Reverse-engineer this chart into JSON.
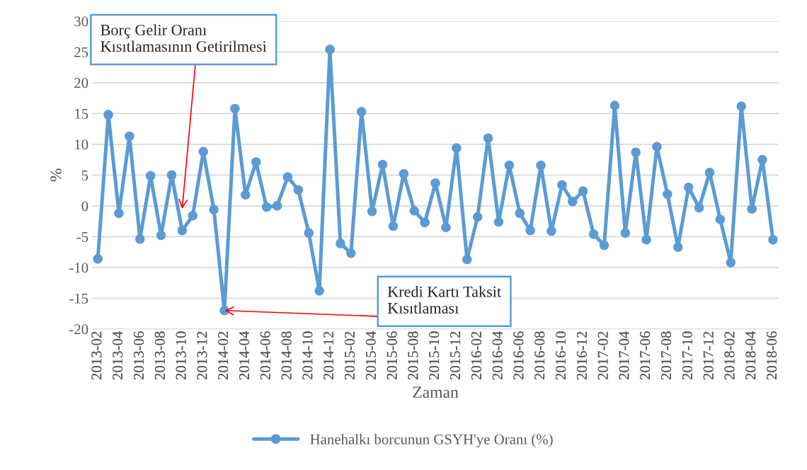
{
  "chart_data": {
    "type": "line",
    "xlabel": "Zaman",
    "ylabel": "%",
    "categories": [
      "2013-02",
      null,
      "2013-04",
      null,
      "2013-06",
      null,
      "2013-08",
      null,
      "2013-10",
      null,
      "2013-12",
      null,
      "2014-02",
      null,
      "2014-04",
      null,
      "2014-06",
      null,
      "2014-08",
      null,
      "2014-10",
      null,
      "2014-12",
      null,
      "2015-02",
      null,
      "2015-04",
      null,
      "2015-06",
      null,
      "2015-08",
      null,
      "2015-10",
      null,
      "2015-12",
      null,
      "2016-02",
      null,
      "2016-04",
      null,
      "2016-06",
      null,
      "2016-08",
      null,
      "2016-10",
      null,
      "2016-12",
      null,
      "2017-02",
      null,
      "2017-04",
      null,
      "2017-06",
      null,
      "2017-08",
      null,
      "2017-10",
      null,
      "2017-12",
      null,
      "2018-02",
      null,
      "2018-04",
      null,
      "2018-06"
    ],
    "series": [
      {
        "name": "Hanehalkı borcunun GSYH'ye Oranı (%)",
        "color": "#5b9bd5",
        "values": [
          -8.6,
          14.8,
          -1.2,
          11.3,
          -5.4,
          4.9,
          -4.8,
          5.0,
          -4.0,
          -1.6,
          8.8,
          -0.6,
          -17.0,
          15.8,
          1.8,
          7.1,
          -0.2,
          0.0,
          4.7,
          2.6,
          -4.4,
          -13.8,
          25.4,
          -6.1,
          -7.7,
          15.3,
          -0.9,
          6.7,
          -3.3,
          5.2,
          -0.8,
          -2.7,
          3.7,
          -3.5,
          9.4,
          -8.7,
          -1.8,
          11.0,
          -2.6,
          6.6,
          -1.2,
          -4.0,
          6.6,
          -4.1,
          3.4,
          0.7,
          2.4,
          -4.6,
          -6.4,
          16.3,
          -4.4,
          8.7,
          -5.5,
          9.6,
          1.9,
          -6.7,
          3.0,
          -0.3,
          5.4,
          -2.2,
          -9.2,
          16.2,
          -0.5,
          7.5,
          -5.5
        ]
      }
    ],
    "ylim": [
      -20,
      30
    ],
    "yticks": [
      -20,
      -15,
      -10,
      -5,
      0,
      5,
      10,
      15,
      20,
      25,
      30
    ],
    "grid": "y",
    "legend": "bottom",
    "marker": "circle",
    "line_style": "solid",
    "annotations": [
      {
        "text": "Borç Gelir Oranı\nKısıtlamasının Getirilmesi",
        "x": "2013-10",
        "y": -0.5
      },
      {
        "text": "Kredi Kartı Taksit\nKısıtlaması",
        "x": "2014-02",
        "y": -17.0
      }
    ]
  }
}
